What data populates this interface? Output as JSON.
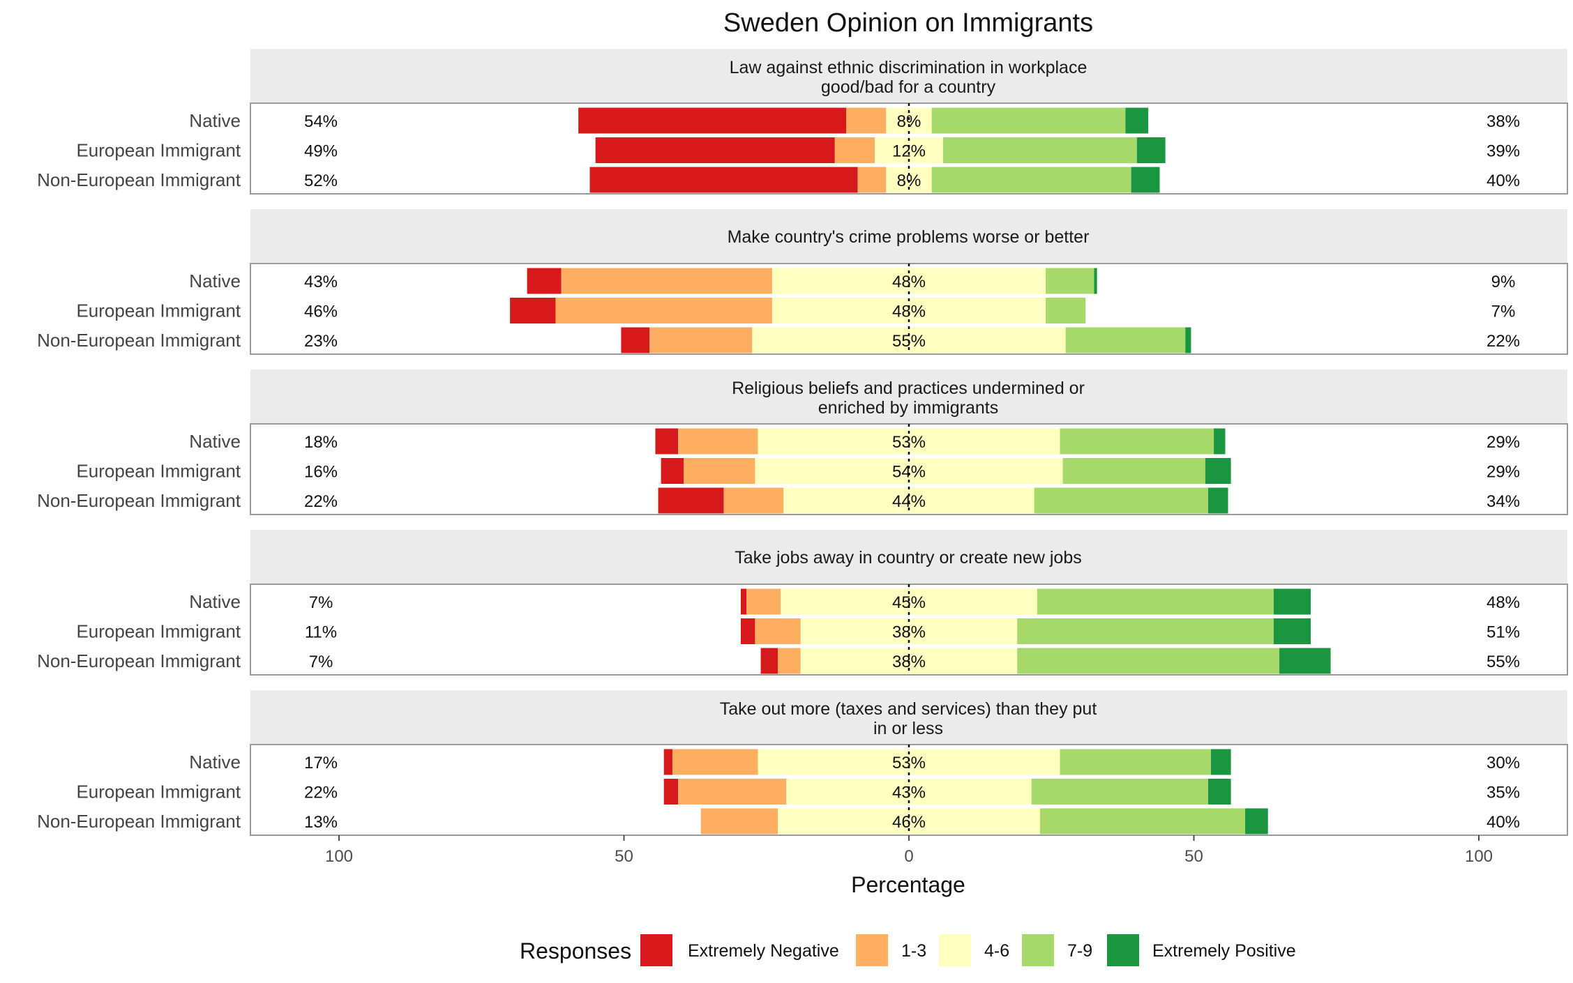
{
  "chart_data": {
    "type": "bar",
    "orientation": "horizontal-diverging",
    "title": "Sweden Opinion on Immigrants",
    "xlabel": "Percentage",
    "xlim": [
      -100,
      100
    ],
    "x_ticks": [
      -100,
      -50,
      0,
      50,
      100
    ],
    "x_tick_labels": [
      "100",
      "50",
      "0",
      "50",
      "100"
    ],
    "groups": [
      "Native",
      "European Immigrant",
      "Non-European Immigrant"
    ],
    "legend": {
      "title": "Responses",
      "position": "bottom",
      "items": [
        {
          "name": "Extremely Negative",
          "color": "#d7191c"
        },
        {
          "name": "1-3",
          "color": "#fdae61"
        },
        {
          "name": "4-6",
          "color": "#ffffbf"
        },
        {
          "name": "7-9",
          "color": "#a6d96a"
        },
        {
          "name": "Extremely Positive",
          "color": "#1a9641"
        }
      ]
    },
    "panels": [
      {
        "title_lines": [
          "Law against ethnic discrimination in workplace",
          "good/bad for a country"
        ],
        "rows": [
          {
            "group": "Native",
            "values": [
              47,
              7,
              8,
              34,
              4
            ],
            "left_label": "54%",
            "center_label": "8%",
            "right_label": "38%"
          },
          {
            "group": "European Immigrant",
            "values": [
              42,
              7,
              12,
              34,
              5
            ],
            "left_label": "49%",
            "center_label": "12%",
            "right_label": "39%"
          },
          {
            "group": "Non-European Immigrant",
            "values": [
              47,
              5,
              8,
              35,
              5
            ],
            "left_label": "52%",
            "center_label": "8%",
            "right_label": "40%"
          }
        ]
      },
      {
        "title_lines": [
          "Make country's crime problems worse or better"
        ],
        "rows": [
          {
            "group": "Native",
            "values": [
              6,
              37,
              48,
              8.5,
              0.5
            ],
            "left_label": "43%",
            "center_label": "48%",
            "right_label": "9%"
          },
          {
            "group": "European Immigrant",
            "values": [
              8,
              38,
              48,
              7,
              0
            ],
            "left_label": "46%",
            "center_label": "48%",
            "right_label": "7%"
          },
          {
            "group": "Non-European Immigrant",
            "values": [
              5,
              18,
              55,
              21,
              1
            ],
            "left_label": "23%",
            "center_label": "55%",
            "right_label": "22%"
          }
        ]
      },
      {
        "title_lines": [
          "Religious beliefs and practices undermined or",
          "enriched by immigrants"
        ],
        "rows": [
          {
            "group": "Native",
            "values": [
              4,
              14,
              53,
              27,
              2
            ],
            "left_label": "18%",
            "center_label": "53%",
            "right_label": "29%"
          },
          {
            "group": "European Immigrant",
            "values": [
              4,
              12.5,
              54,
              25,
              4.5
            ],
            "left_label": "16%",
            "center_label": "54%",
            "right_label": "29%"
          },
          {
            "group": "Non-European Immigrant",
            "values": [
              11.5,
              10.5,
              44,
              30.5,
              3.5
            ],
            "left_label": "22%",
            "center_label": "44%",
            "right_label": "34%"
          }
        ]
      },
      {
        "title_lines": [
          "Take jobs away in country or create new jobs"
        ],
        "rows": [
          {
            "group": "Native",
            "values": [
              1,
              6,
              45,
              41.5,
              6.5
            ],
            "left_label": "7%",
            "center_label": "45%",
            "right_label": "48%"
          },
          {
            "group": "European Immigrant",
            "values": [
              2.5,
              8,
              38,
              45,
              6.5
            ],
            "left_label": "11%",
            "center_label": "38%",
            "right_label": "51%"
          },
          {
            "group": "Non-European Immigrant",
            "values": [
              3,
              4,
              38,
              46,
              9
            ],
            "left_label": "7%",
            "center_label": "38%",
            "right_label": "55%"
          }
        ]
      },
      {
        "title_lines": [
          "Take out more (taxes and services) than they put",
          "in or less"
        ],
        "rows": [
          {
            "group": "Native",
            "values": [
              1.5,
              15,
              53,
              26.5,
              3.5
            ],
            "left_label": "17%",
            "center_label": "53%",
            "right_label": "30%"
          },
          {
            "group": "European Immigrant",
            "values": [
              2.5,
              19,
              43,
              31,
              4
            ],
            "left_label": "22%",
            "center_label": "43%",
            "right_label": "35%"
          },
          {
            "group": "Non-European Immigrant",
            "values": [
              0,
              13.5,
              46,
              36,
              4
            ],
            "left_label": "13%",
            "center_label": "46%",
            "right_label": "40%"
          }
        ]
      }
    ]
  }
}
